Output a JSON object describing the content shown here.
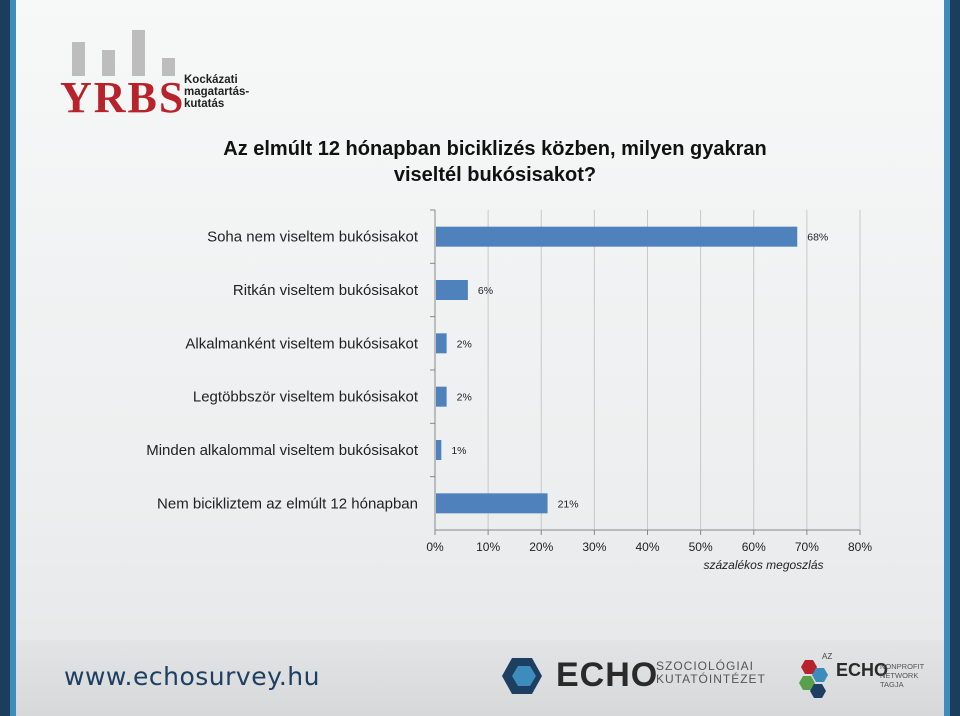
{
  "header": {
    "logo_text": "YRBS",
    "logo_sub": [
      "Kockázati",
      "magatartás-",
      "kutatás"
    ],
    "logo_colors": {
      "red": "#b8232b",
      "bars": "#bdbdbd"
    }
  },
  "title": {
    "line1": "Az elmúlt 12 hónapban biciklizés közben, milyen gyakran",
    "line2": "viseltél bukósisakot?"
  },
  "chart_data": {
    "type": "bar",
    "orientation": "horizontal",
    "categories": [
      "Soha nem viseltem bukósisakot",
      "Ritkán viseltem bukósisakot",
      "Alkalmanként viseltem bukósisakot",
      "Legtöbbször viseltem bukósisakot",
      "Minden alkalommal viseltem bukósisakot",
      "Nem bicikliztem az elmúlt 12 hónapban"
    ],
    "values": [
      68,
      6,
      2,
      2,
      1,
      21
    ],
    "data_labels": [
      "68%",
      "6%",
      "2%",
      "2%",
      "1%",
      "21%"
    ],
    "xlim": [
      0,
      80
    ],
    "xticks": [
      "0%",
      "10%",
      "20%",
      "30%",
      "40%",
      "50%",
      "60%",
      "70%",
      "80%"
    ],
    "xlabel": "százalékos megoszlás",
    "grid": true,
    "bar_color": "#4f81bd"
  },
  "footer": {
    "url": "www.echosurvey.hu",
    "echo_word": "ECHO",
    "echo_sub": [
      "SZOCIOLÓGIAI",
      "KUTATÓINTÉZET"
    ],
    "network_small": "AZ",
    "network_word": "ECHO",
    "network_sub": [
      "NONPROFIT",
      "NETWORK",
      "TAGJA"
    ]
  }
}
